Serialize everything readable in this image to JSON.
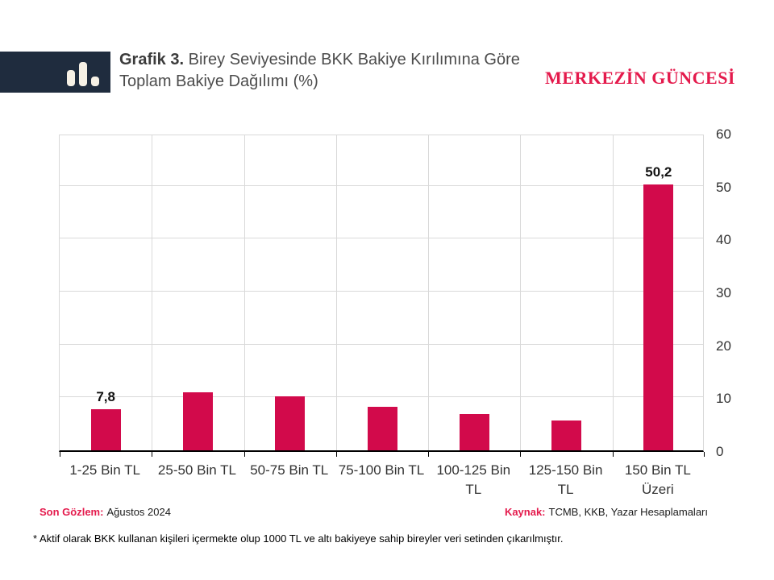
{
  "header": {
    "title_prefix": "Grafik 3.",
    "title_rest": " Birey Seviyesinde BKK Bakiye Kırılımına Göre Toplam Bakiye Dağılımı (%)",
    "masthead": "MERKEZİN GÜNCESİ",
    "logo_icon": "bar-chart-icon"
  },
  "chart_data": {
    "type": "bar",
    "title": "Grafik 3. Birey Seviyesinde BKK Bakiye Kırılımına Göre Toplam Bakiye Dağılımı (%)",
    "categories": [
      "1-25 Bin TL",
      "25-50 Bin TL",
      "50-75 Bin TL",
      "75-100 Bin TL",
      "100-125 Bin TL",
      "125-150 Bin TL",
      "150 Bin TL Üzeri"
    ],
    "values": [
      7.8,
      11.0,
      10.2,
      8.3,
      6.9,
      5.6,
      50.2
    ],
    "value_labels": {
      "0": "7,8",
      "6": "50,2"
    },
    "xlabel": "",
    "ylabel": "",
    "ylim": [
      0,
      60
    ],
    "yticks": [
      0,
      10,
      20,
      30,
      40,
      50,
      60
    ],
    "yaxis_side": "right",
    "grid": true,
    "legend": false,
    "bar_color": "#d20a4b",
    "gridline_color": "#d9d9d9"
  },
  "footer": {
    "observation_label": "Son Gözlem:",
    "observation_value": "Ağustos 2024",
    "source_label": "Kaynak:",
    "source_value": "TCMB, KKB, Yazar Hesaplamaları",
    "note": "* Aktif olarak BKK kullanan kişileri içermekte olup 1000 TL ve altı bakiyeye sahip bireyler veri setinden çıkarılmıştır."
  },
  "colors": {
    "accent_red": "#e41a4c",
    "bar_red": "#d20a4b",
    "logo_navy": "#1f2c3e",
    "logo_cream": "#f6f1e6"
  }
}
